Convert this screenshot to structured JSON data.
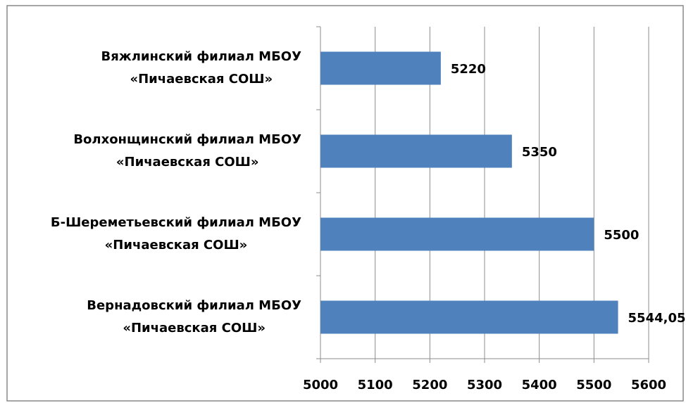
{
  "chart_data": {
    "type": "hbar",
    "categories": [
      [
        "Вяжлинский филиал МБОУ",
        "«Пичаевская СОШ»"
      ],
      [
        "Волхонщинский филиал МБОУ",
        "«Пичаевская СОШ»"
      ],
      [
        "Б-Шереметьевский филиал МБОУ",
        "«Пичаевская СОШ»"
      ],
      [
        "Вернадовский филиал МБОУ",
        "«Пичаевская СОШ»"
      ]
    ],
    "values": [
      5220,
      5350,
      5500,
      5544.05
    ],
    "value_labels": [
      "5220",
      "5350",
      "5500",
      "5544,05"
    ],
    "color": "#4f81bd",
    "xlim": [
      5000,
      5600
    ],
    "xticks": [
      5000,
      5100,
      5200,
      5300,
      5400,
      5500,
      5600
    ],
    "grid": true
  }
}
